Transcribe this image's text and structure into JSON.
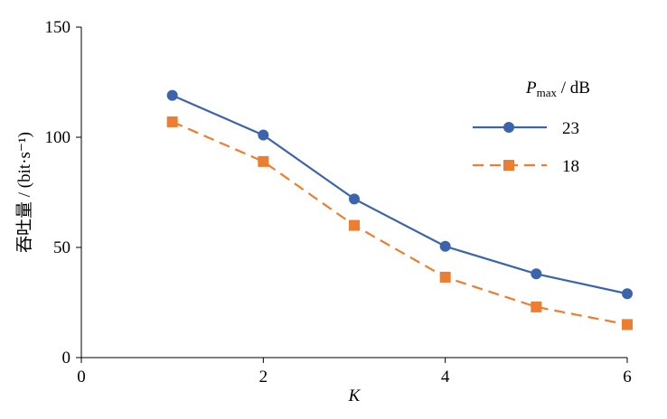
{
  "chart_data": {
    "type": "line",
    "x_label": "K",
    "y_label": "吞吐量 / (bit·s⁻¹)",
    "legend_title": {
      "symbol": "P",
      "subscript": "max",
      "unit": " / dB"
    },
    "x": [
      1,
      2,
      3,
      4,
      5,
      6
    ],
    "series": [
      {
        "name": "23",
        "color": "#3b64ad",
        "marker": "circle",
        "dashed": false,
        "values": [
          119,
          101,
          72,
          50.5,
          38,
          29
        ]
      },
      {
        "name": "18",
        "color": "#ed7d31",
        "marker": "square",
        "dashed": true,
        "values": [
          107,
          89,
          60,
          36.5,
          23,
          15
        ]
      }
    ],
    "xlim": [
      0,
      6
    ],
    "xticks": [
      0,
      2,
      4,
      6
    ],
    "ylim": [
      0,
      150
    ],
    "yticks": [
      0,
      50,
      100,
      150
    ],
    "grid": false
  }
}
